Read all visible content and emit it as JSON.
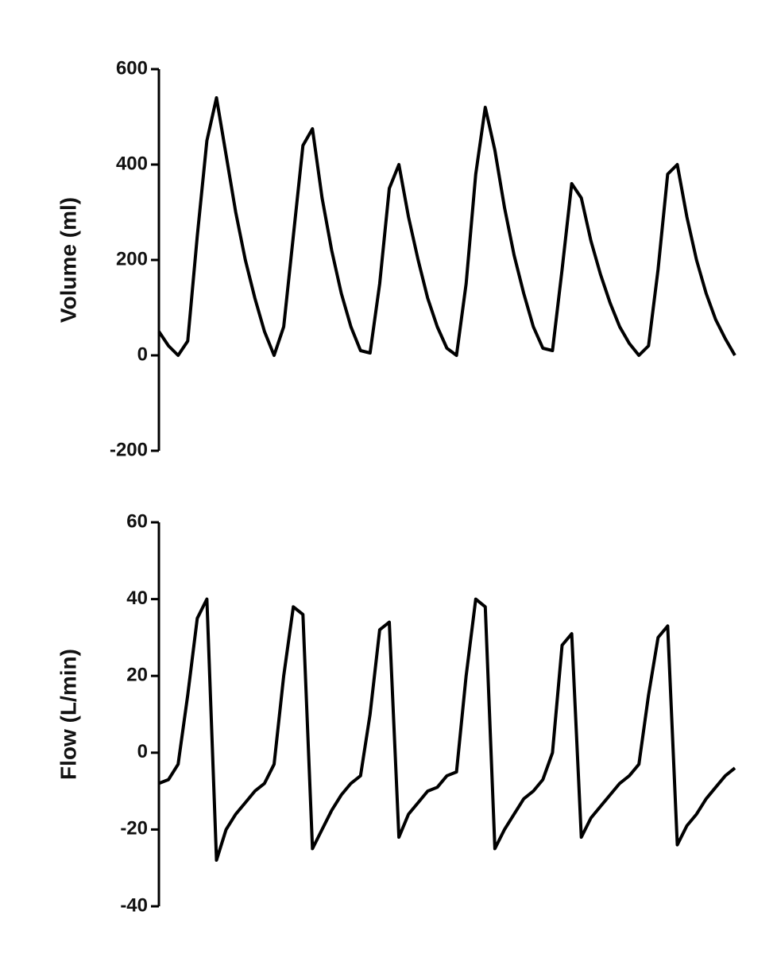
{
  "chart_data": [
    {
      "type": "line",
      "y_label": "Volume (ml)",
      "color": "#000000",
      "ylim": [
        -200,
        600
      ],
      "yticks": [
        -200,
        0,
        200,
        400,
        600
      ],
      "values": [
        50,
        20,
        0,
        30,
        250,
        450,
        540,
        420,
        300,
        200,
        120,
        50,
        0,
        60,
        250,
        440,
        475,
        330,
        220,
        130,
        60,
        10,
        5,
        150,
        350,
        400,
        290,
        200,
        120,
        60,
        15,
        0,
        150,
        380,
        520,
        430,
        310,
        210,
        130,
        60,
        15,
        10,
        180,
        360,
        330,
        240,
        170,
        110,
        60,
        25,
        0,
        20,
        180,
        380,
        400,
        290,
        200,
        130,
        75,
        35,
        0
      ]
    },
    {
      "type": "line",
      "y_label": "Flow (L/min)",
      "color": "#000000",
      "ylim": [
        -40,
        60
      ],
      "yticks": [
        -40,
        -20,
        0,
        20,
        40,
        60
      ],
      "values": [
        -8,
        -7,
        -3,
        15,
        35,
        40,
        -28,
        -20,
        -16,
        -13,
        -10,
        -8,
        -3,
        20,
        38,
        36,
        -25,
        -20,
        -15,
        -11,
        -8,
        -6,
        10,
        32,
        34,
        -22,
        -16,
        -13,
        -10,
        -9,
        -6,
        -5,
        20,
        40,
        38,
        -25,
        -20,
        -16,
        -12,
        -10,
        -7,
        0,
        28,
        31,
        -22,
        -17,
        -14,
        -11,
        -8,
        -6,
        -3,
        15,
        30,
        33,
        -24,
        -19,
        -16,
        -12,
        -9,
        -6,
        -4
      ]
    }
  ]
}
